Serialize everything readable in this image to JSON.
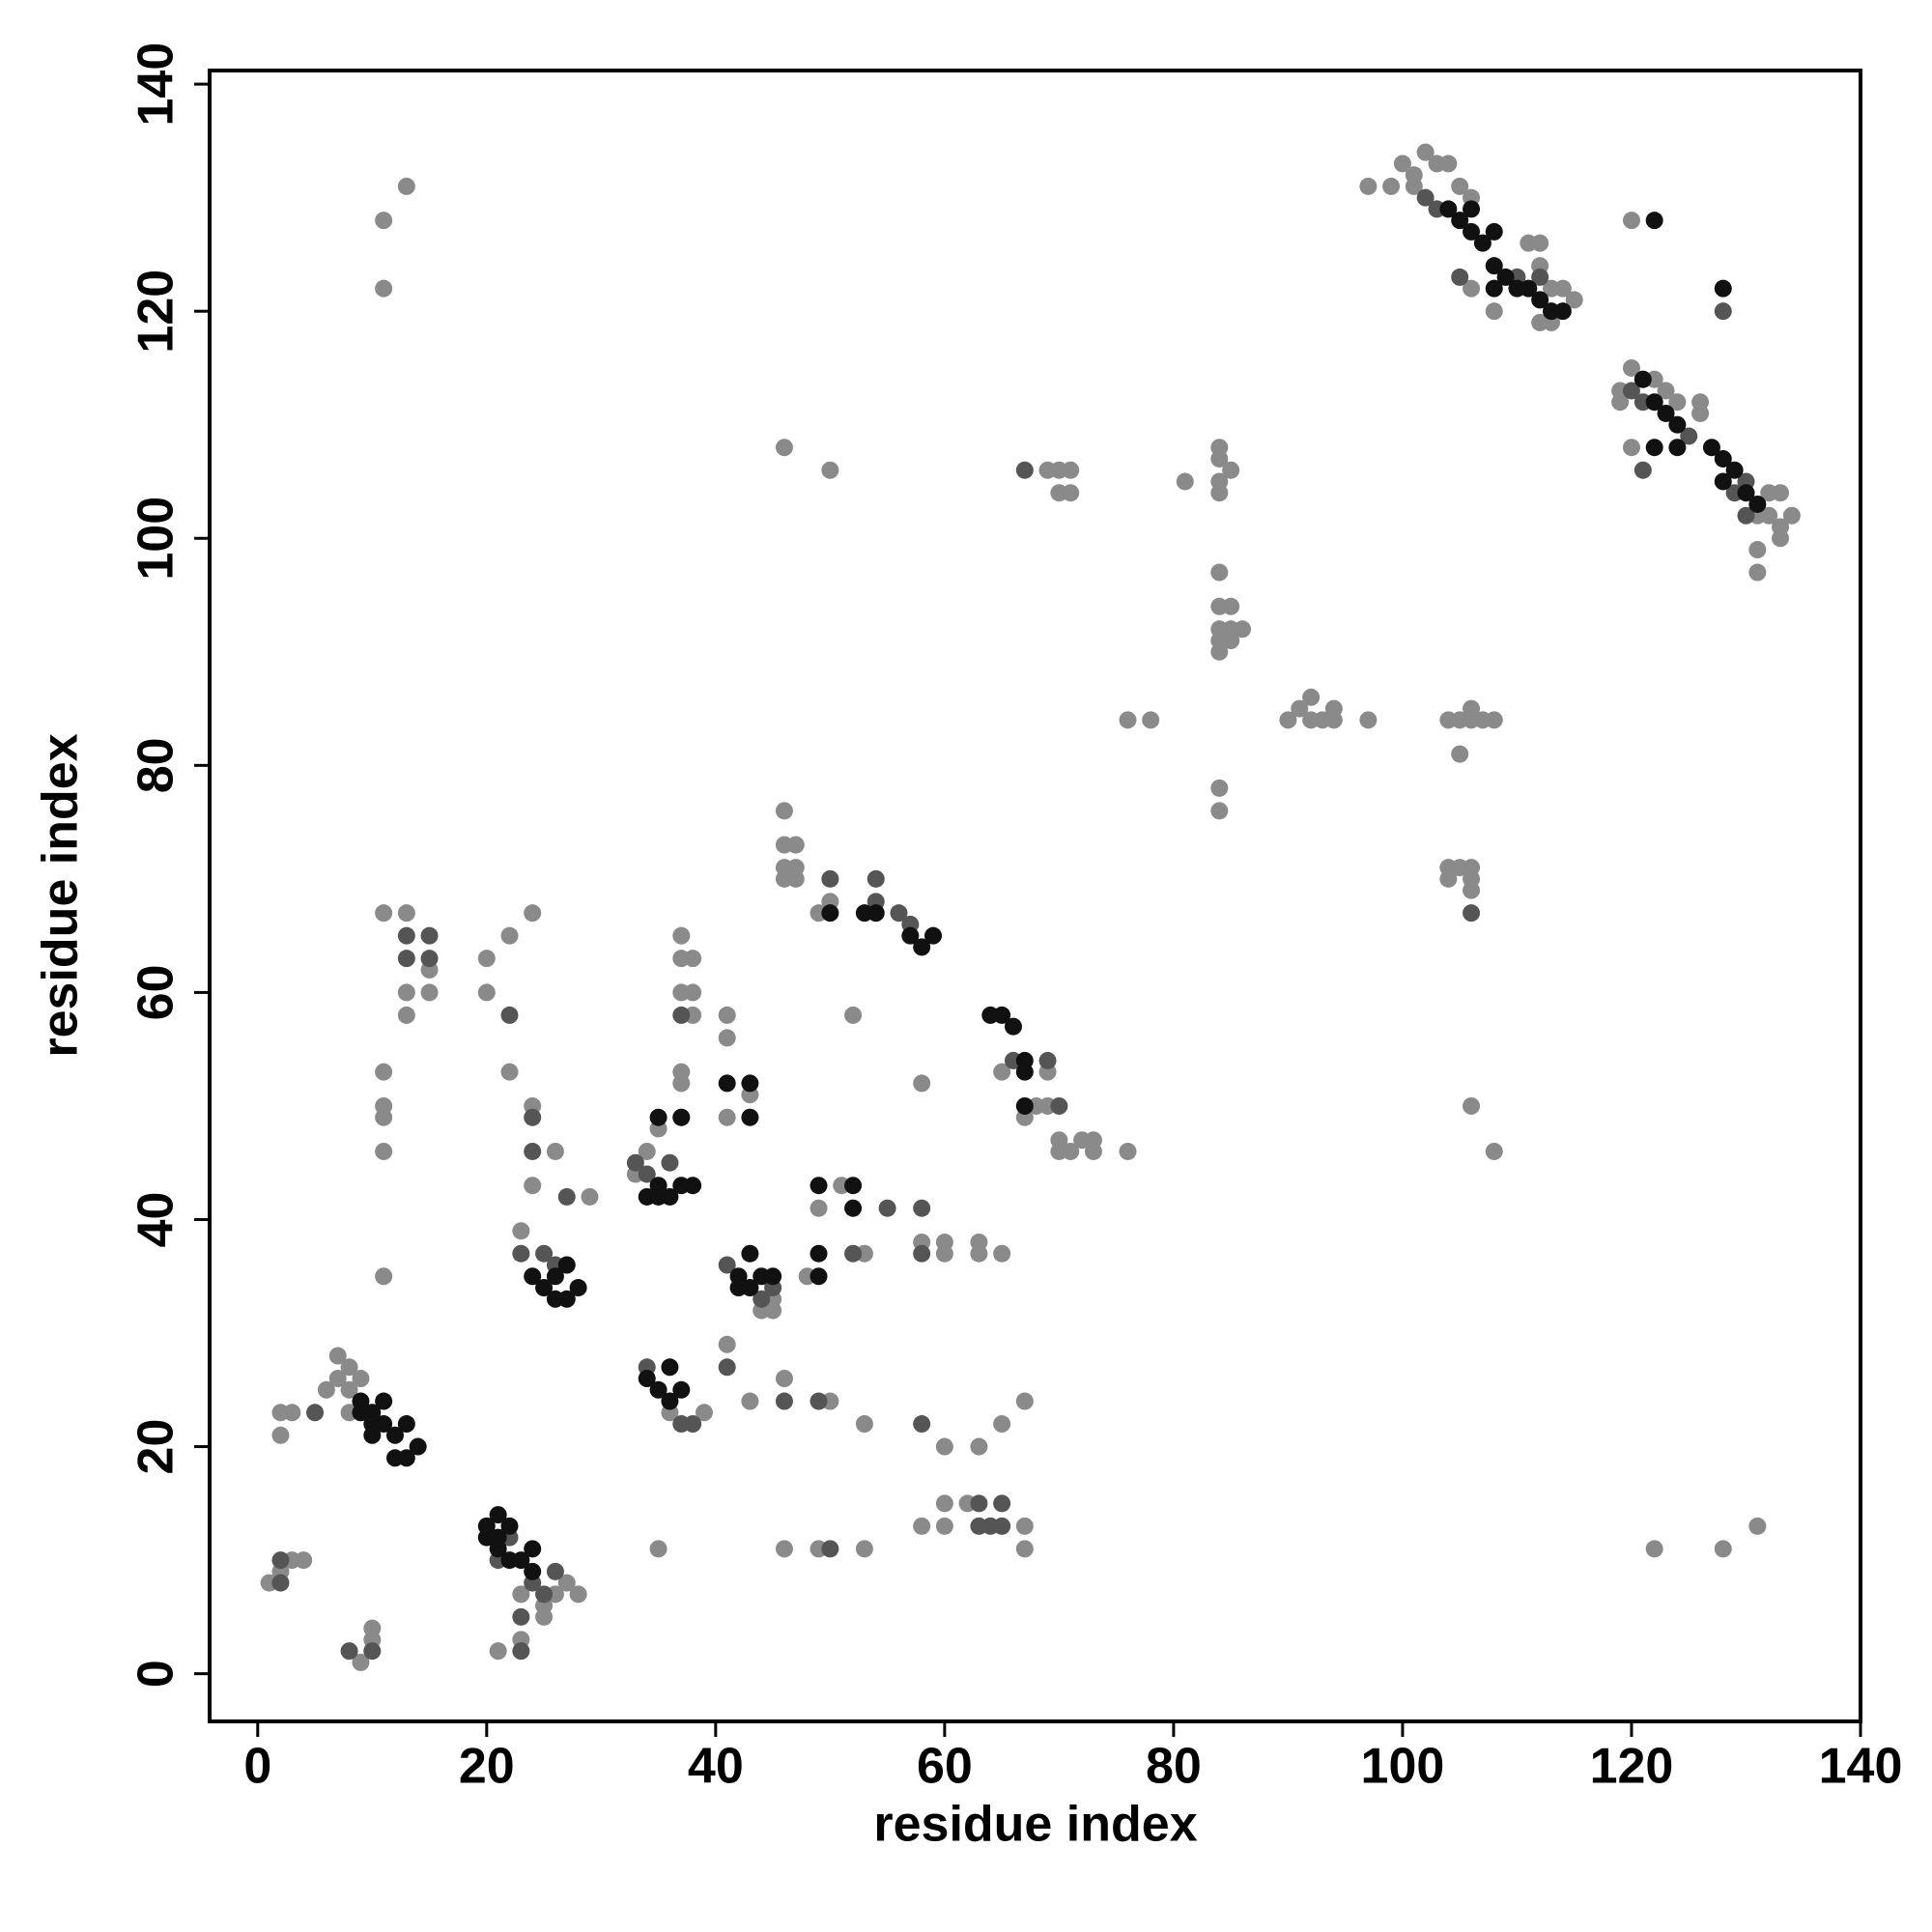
{
  "chart_data": {
    "type": "scatter",
    "xlabel": "residue index",
    "ylabel": "residue index",
    "xlim": [
      -4.2,
      140
    ],
    "ylim": [
      -4.2,
      141.2
    ],
    "xticks": [
      0,
      20,
      40,
      60,
      80,
      100,
      120,
      140
    ],
    "yticks": [
      0,
      20,
      40,
      60,
      80,
      100,
      120,
      140
    ],
    "series": [
      {
        "color": "#8a8a8a",
        "x": [
          1,
          2,
          3,
          4,
          2,
          3,
          2,
          6,
          7,
          8,
          8,
          7,
          9,
          8,
          9,
          10,
          10,
          11,
          11,
          13,
          11,
          13,
          13,
          13,
          15,
          15,
          11,
          11,
          11,
          11,
          11,
          20,
          20,
          22,
          24,
          22,
          24,
          24,
          26,
          29,
          23,
          23,
          25,
          26,
          27,
          28,
          25,
          23,
          21,
          36,
          39,
          37,
          37,
          38,
          37,
          38,
          38,
          37,
          37,
          35,
          35,
          33,
          34,
          41,
          41,
          41,
          43,
          45,
          44,
          45,
          41,
          43,
          46,
          46,
          49,
          53,
          50,
          53,
          46,
          46,
          47,
          46,
          47,
          46,
          47,
          49,
          50,
          46,
          50,
          51,
          52,
          53,
          49,
          48,
          58,
          58,
          58,
          60,
          60,
          60,
          60,
          60,
          62,
          63,
          63,
          63,
          65,
          65,
          67,
          67,
          67,
          65,
          67,
          68,
          69,
          69,
          70,
          70,
          71,
          72,
          73,
          73,
          76,
          69,
          70,
          71,
          70,
          71,
          76,
          78,
          81,
          84,
          84,
          85,
          84,
          84,
          84,
          84,
          85,
          84,
          85,
          86,
          84,
          85,
          84,
          84,
          84,
          90,
          91,
          92,
          92,
          93,
          94,
          94,
          97,
          97,
          99,
          100,
          101,
          102,
          103,
          104,
          101,
          105,
          106,
          104,
          105,
          106,
          107,
          108,
          106,
          105,
          104,
          105,
          106,
          104,
          106,
          106,
          106,
          108,
          106,
          108,
          111,
          112,
          112,
          113,
          114,
          115,
          112,
          113,
          119,
          119,
          120,
          121,
          122,
          123,
          124,
          126,
          126,
          120,
          120,
          122,
          128,
          131,
          131,
          132,
          133,
          132,
          133,
          134,
          133,
          131,
          131
        ],
        "y": [
          8,
          9,
          10,
          10,
          23,
          23,
          21,
          25,
          26,
          25,
          27,
          28,
          26,
          23,
          1,
          3,
          4,
          128,
          122,
          131,
          67,
          67,
          60,
          58,
          60,
          62,
          53,
          50,
          49,
          46,
          35,
          63,
          60,
          65,
          67,
          53,
          50,
          43,
          46,
          42,
          39,
          7,
          6,
          7,
          8,
          7,
          5,
          3,
          2,
          23,
          23,
          65,
          63,
          63,
          60,
          60,
          58,
          53,
          52,
          48,
          11,
          44,
          46,
          58,
          56,
          49,
          51,
          33,
          32,
          32,
          29,
          24,
          26,
          11,
          11,
          11,
          24,
          22,
          76,
          73,
          73,
          71,
          71,
          70,
          70,
          67,
          68,
          108,
          106,
          43,
          58,
          37,
          41,
          35,
          52,
          38,
          13,
          38,
          37,
          20,
          15,
          13,
          15,
          38,
          37,
          20,
          37,
          22,
          24,
          13,
          11,
          53,
          49,
          50,
          50,
          53,
          47,
          46,
          46,
          47,
          47,
          46,
          46,
          106,
          106,
          106,
          104,
          104,
          84,
          84,
          105,
          108,
          107,
          106,
          105,
          104,
          97,
          94,
          94,
          92,
          92,
          92,
          91,
          91,
          90,
          78,
          76,
          84,
          85,
          86,
          84,
          84,
          85,
          84,
          84,
          131,
          131,
          133,
          132,
          134,
          133,
          133,
          131,
          131,
          130,
          84,
          84,
          84,
          84,
          84,
          85,
          81,
          71,
          71,
          71,
          70,
          70,
          69,
          50,
          46,
          122,
          120,
          126,
          126,
          124,
          122,
          122,
          121,
          119,
          119,
          113,
          112,
          115,
          114,
          114,
          113,
          112,
          112,
          111,
          108,
          128,
          11,
          11,
          13,
          102,
          104,
          104,
          102,
          101,
          102,
          100,
          99,
          97
        ]
      },
      {
        "color": "#555555",
        "x": [
          2,
          2,
          5,
          8,
          10,
          13,
          13,
          15,
          15,
          22,
          24,
          24,
          27,
          23,
          25,
          26,
          24,
          25,
          26,
          23,
          23,
          21,
          22,
          34,
          37,
          38,
          37,
          37,
          41,
          46,
          49,
          50,
          52,
          55,
          58,
          58,
          58,
          63,
          64,
          65,
          65,
          63,
          67,
          69,
          70,
          66,
          54,
          54,
          56,
          57,
          102,
          103,
          106,
          105,
          110,
          112,
          121,
          121,
          120,
          125,
          129,
          130,
          130,
          128,
          33,
          34,
          36,
          44,
          45,
          50,
          41
        ],
        "y": [
          8,
          10,
          23,
          2,
          2,
          65,
          63,
          65,
          63,
          58,
          49,
          46,
          42,
          37,
          37,
          36,
          8,
          7,
          9,
          5,
          2,
          10,
          12,
          27,
          22,
          22,
          58,
          49,
          27,
          24,
          24,
          11,
          37,
          41,
          41,
          37,
          22,
          15,
          13,
          15,
          13,
          13,
          106,
          54,
          50,
          54,
          70,
          68,
          67,
          66,
          130,
          129,
          67,
          123,
          123,
          123,
          112,
          106,
          113,
          109,
          104,
          105,
          102,
          120,
          45,
          44,
          45,
          33,
          34,
          70,
          36
        ]
      },
      {
        "color": "#111111",
        "x": [
          9,
          10,
          11,
          10,
          11,
          12,
          12,
          13,
          13,
          14,
          9,
          10,
          20,
          21,
          21,
          20,
          21,
          22,
          23,
          24,
          24,
          22,
          24,
          25,
          26,
          27,
          26,
          27,
          28,
          34,
          35,
          36,
          37,
          36,
          35,
          37,
          35,
          36,
          37,
          38,
          35,
          34,
          41,
          43,
          43,
          42,
          42,
          43,
          43,
          44,
          45,
          49,
          52,
          52,
          49,
          49,
          50,
          53,
          54,
          57,
          58,
          59,
          65,
          66,
          67,
          67,
          67,
          64,
          104,
          105,
          106,
          107,
          108,
          106,
          108,
          109,
          110,
          111,
          112,
          113,
          114,
          108,
          122,
          128,
          121,
          122,
          123,
          124,
          124,
          122,
          127,
          128,
          128,
          129,
          130,
          131
        ],
        "y": [
          24,
          23,
          24,
          22,
          22,
          21,
          19,
          19,
          22,
          20,
          23,
          21,
          13,
          12,
          14,
          12,
          11,
          10,
          10,
          9,
          11,
          13,
          35,
          34,
          33,
          33,
          35,
          36,
          34,
          26,
          25,
          24,
          25,
          27,
          49,
          49,
          42,
          42,
          43,
          43,
          43,
          42,
          52,
          52,
          49,
          35,
          34,
          34,
          37,
          35,
          35,
          43,
          43,
          41,
          37,
          35,
          67,
          67,
          67,
          65,
          64,
          65,
          58,
          57,
          54,
          53,
          50,
          58,
          129,
          128,
          127,
          126,
          127,
          129,
          124,
          123,
          122,
          122,
          121,
          120,
          120,
          122,
          128,
          122,
          114,
          112,
          111,
          110,
          108,
          108,
          108,
          107,
          105,
          106,
          104,
          103
        ]
      }
    ]
  }
}
